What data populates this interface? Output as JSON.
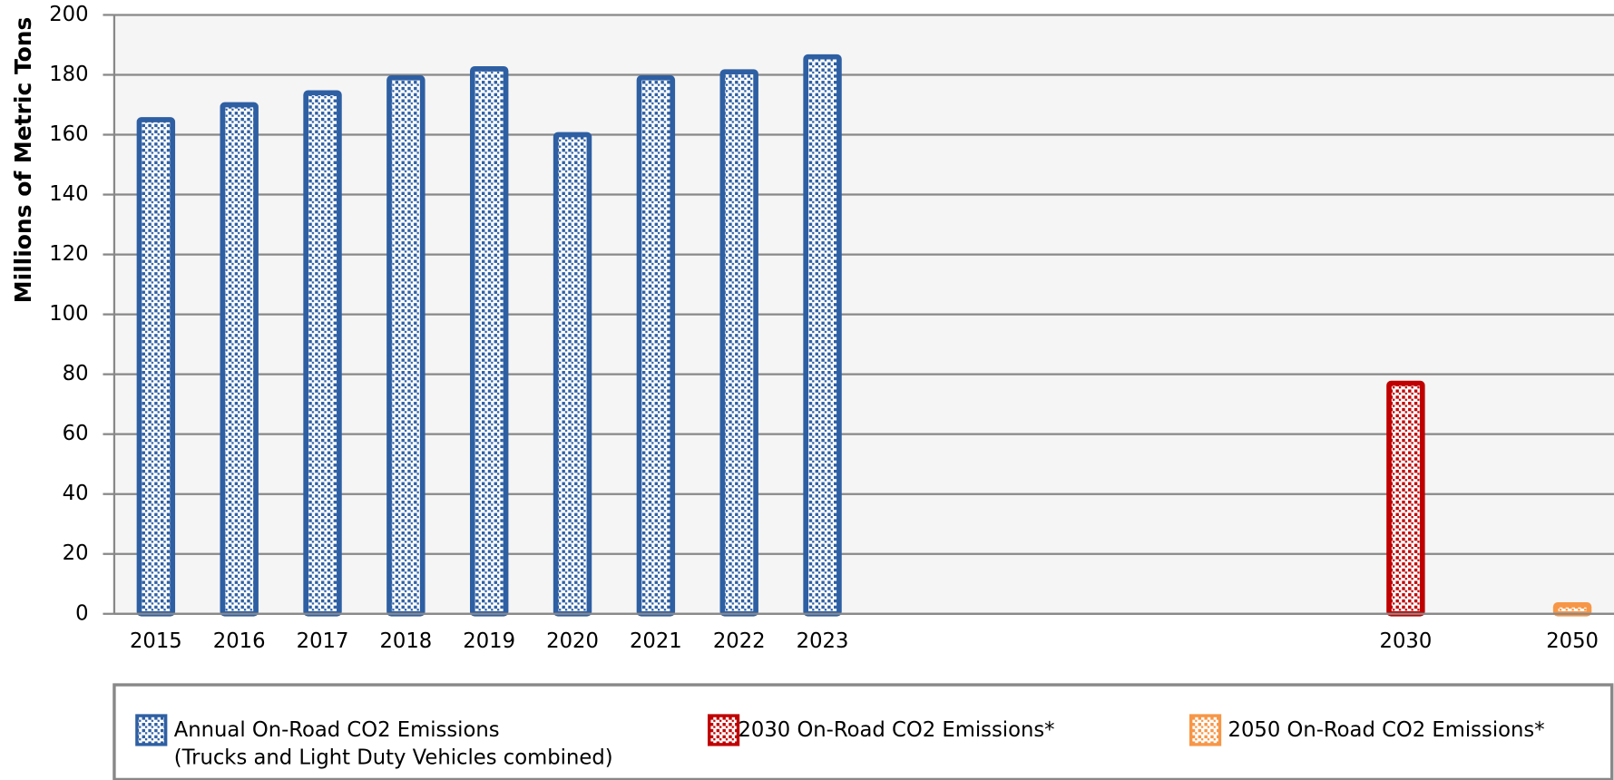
{
  "chart_data": {
    "type": "bar",
    "y_label": "Millions of Metric Tons",
    "categories": [
      "2015",
      "2016",
      "2017",
      "2018",
      "2019",
      "2020",
      "2021",
      "2022",
      "2023",
      null,
      null,
      null,
      null,
      null,
      null,
      "2030",
      null,
      "2050"
    ],
    "series": [
      {
        "name": "Annual On-Road CO2 Emissions\n(Trucks and Light Duty Vehicles combined)",
        "color": "#2e5fa3",
        "values": [
          165,
          170,
          174,
          179,
          182,
          160,
          179,
          181,
          186,
          null,
          null,
          null,
          null,
          null,
          null,
          null,
          null,
          null
        ]
      },
      {
        "name": "2030 On-Road CO2 Emissions*",
        "color": "#c00000",
        "values": [
          null,
          null,
          null,
          null,
          null,
          null,
          null,
          null,
          null,
          null,
          null,
          null,
          null,
          null,
          null,
          77,
          null,
          null
        ]
      },
      {
        "name": "2050 On-Road CO2 Emissions*",
        "color": "#f79646",
        "values": [
          null,
          null,
          null,
          null,
          null,
          null,
          null,
          null,
          null,
          null,
          null,
          null,
          null,
          null,
          null,
          null,
          null,
          3
        ]
      }
    ],
    "ylim": [
      0,
      200
    ],
    "yticks": [
      0,
      20,
      40,
      60,
      80,
      100,
      120,
      140,
      160,
      180,
      200
    ],
    "grid": true
  }
}
